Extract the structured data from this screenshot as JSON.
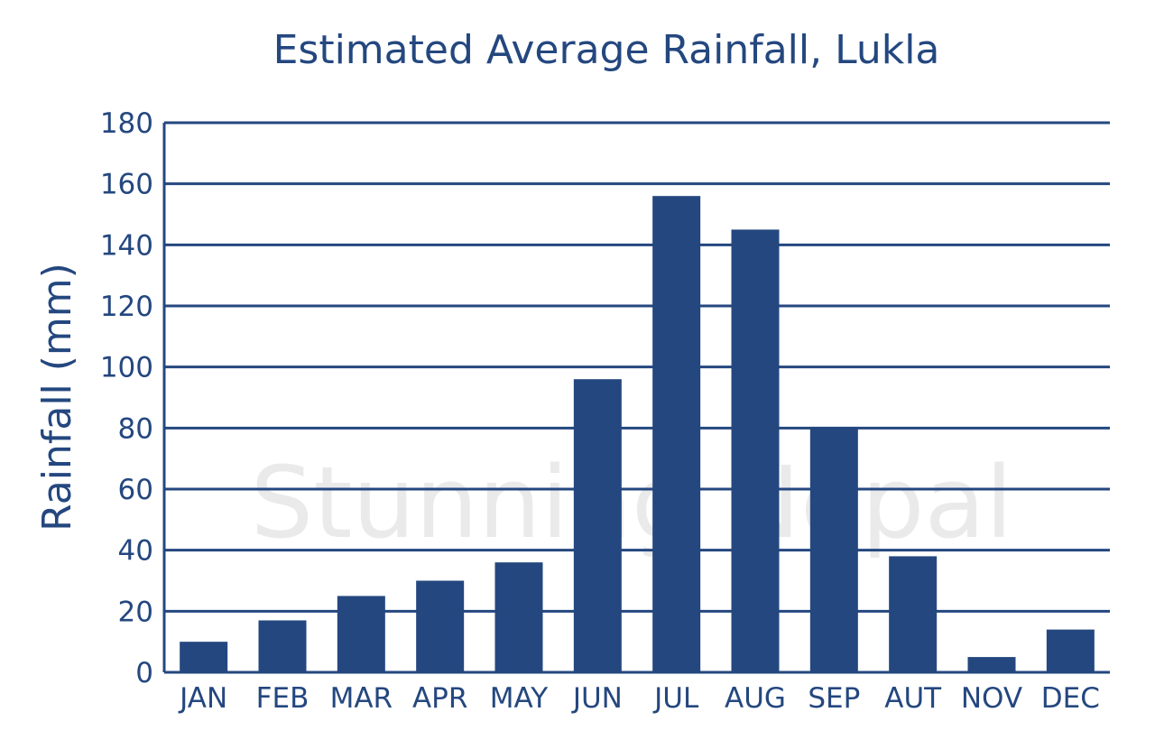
{
  "colors": {
    "bar": "#24477f",
    "grid": "#24477f",
    "text": "#24477f",
    "background": "#ffffff",
    "watermark": "#d9d9d9"
  },
  "watermark": {
    "text": "Stunning Nepal"
  },
  "chart_data": {
    "type": "bar",
    "title": "Estimated Average Rainfall, Lukla",
    "xlabel": "",
    "ylabel": "Rainfall (mm)",
    "ylim": [
      0,
      180
    ],
    "yticks": [
      0,
      20,
      40,
      60,
      80,
      100,
      120,
      140,
      160,
      180
    ],
    "grid": true,
    "legend": "none",
    "categories": [
      "JAN",
      "FEB",
      "MAR",
      "APR",
      "MAY",
      "JUN",
      "JUL",
      "AUG",
      "SEP",
      "AUT",
      "NOV",
      "DEC"
    ],
    "values": [
      10,
      17,
      25,
      30,
      36,
      96,
      156,
      145,
      80,
      38,
      5,
      14
    ]
  }
}
